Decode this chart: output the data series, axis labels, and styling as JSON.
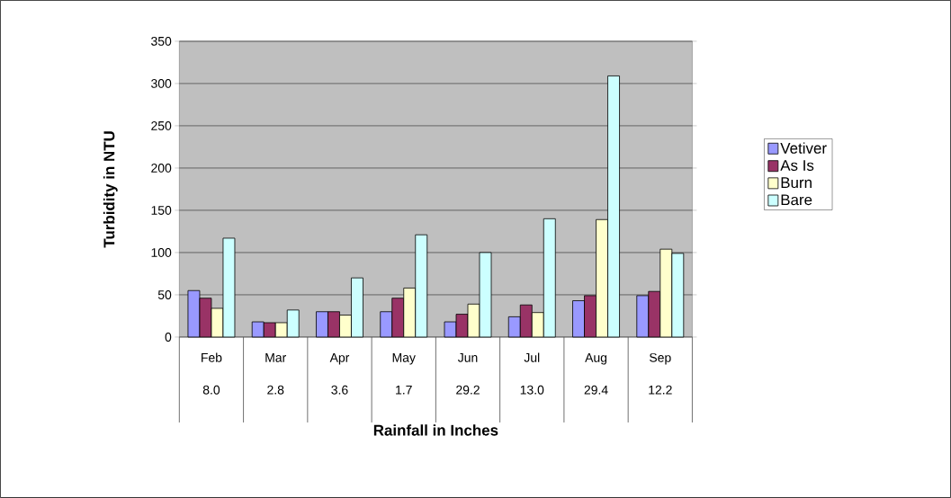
{
  "chart_data": {
    "type": "bar",
    "xlabel": "Rainfall in Inches",
    "ylabel": "Turbidity in NTU",
    "categories": [
      "Feb",
      "Mar",
      "Apr",
      "May",
      "Jun",
      "Jul",
      "Aug",
      "Sep"
    ],
    "annotations": [
      "8.0",
      "2.8",
      "3.6",
      "1.7",
      "29.2",
      "13.0",
      "29.4",
      "12.2"
    ],
    "series": [
      {
        "name": "Vetiver",
        "color": "#9999ff",
        "values": [
          55,
          18,
          30,
          30,
          18,
          24,
          43,
          49
        ]
      },
      {
        "name": "As Is",
        "color": "#993366",
        "values": [
          46,
          17,
          30,
          46,
          27,
          38,
          49,
          54
        ]
      },
      {
        "name": "Burn",
        "color": "#ffffcc",
        "values": [
          34,
          17,
          26,
          58,
          39,
          29,
          139,
          104
        ]
      },
      {
        "name": "Bare",
        "color": "#ccffff",
        "values": [
          117,
          32,
          70,
          121,
          100,
          140,
          309,
          99
        ]
      }
    ],
    "ylim": [
      0,
      350
    ],
    "yticks": [
      0,
      50,
      100,
      150,
      200,
      250,
      300,
      350
    ],
    "grid": "y",
    "legend": "right"
  }
}
